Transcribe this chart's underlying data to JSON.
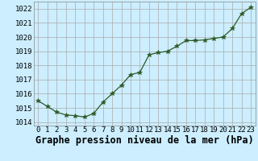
{
  "x": [
    0,
    1,
    2,
    3,
    4,
    5,
    6,
    7,
    8,
    9,
    10,
    11,
    12,
    13,
    14,
    15,
    16,
    17,
    18,
    19,
    20,
    21,
    22,
    23
  ],
  "y": [
    1015.5,
    1015.1,
    1014.7,
    1014.5,
    1014.45,
    1014.35,
    1014.6,
    1015.4,
    1016.0,
    1016.6,
    1017.35,
    1017.5,
    1018.75,
    1018.9,
    1019.0,
    1019.35,
    1019.75,
    1019.75,
    1019.8,
    1019.9,
    1020.0,
    1020.6,
    1021.65,
    1022.1
  ],
  "ylim": [
    1013.75,
    1022.5
  ],
  "yticks": [
    1014,
    1015,
    1016,
    1017,
    1018,
    1019,
    1020,
    1021,
    1022
  ],
  "xticks": [
    0,
    1,
    2,
    3,
    4,
    5,
    6,
    7,
    8,
    9,
    10,
    11,
    12,
    13,
    14,
    15,
    16,
    17,
    18,
    19,
    20,
    21,
    22,
    23
  ],
  "xlabel": "Graphe pression niveau de la mer (hPa)",
  "line_color": "#2d5a27",
  "marker": "*",
  "marker_size": 4,
  "bg_color": "#cceeff",
  "grid_color": "#aaaaaa",
  "tick_fontsize": 6.5,
  "xlabel_fontsize": 8.5
}
